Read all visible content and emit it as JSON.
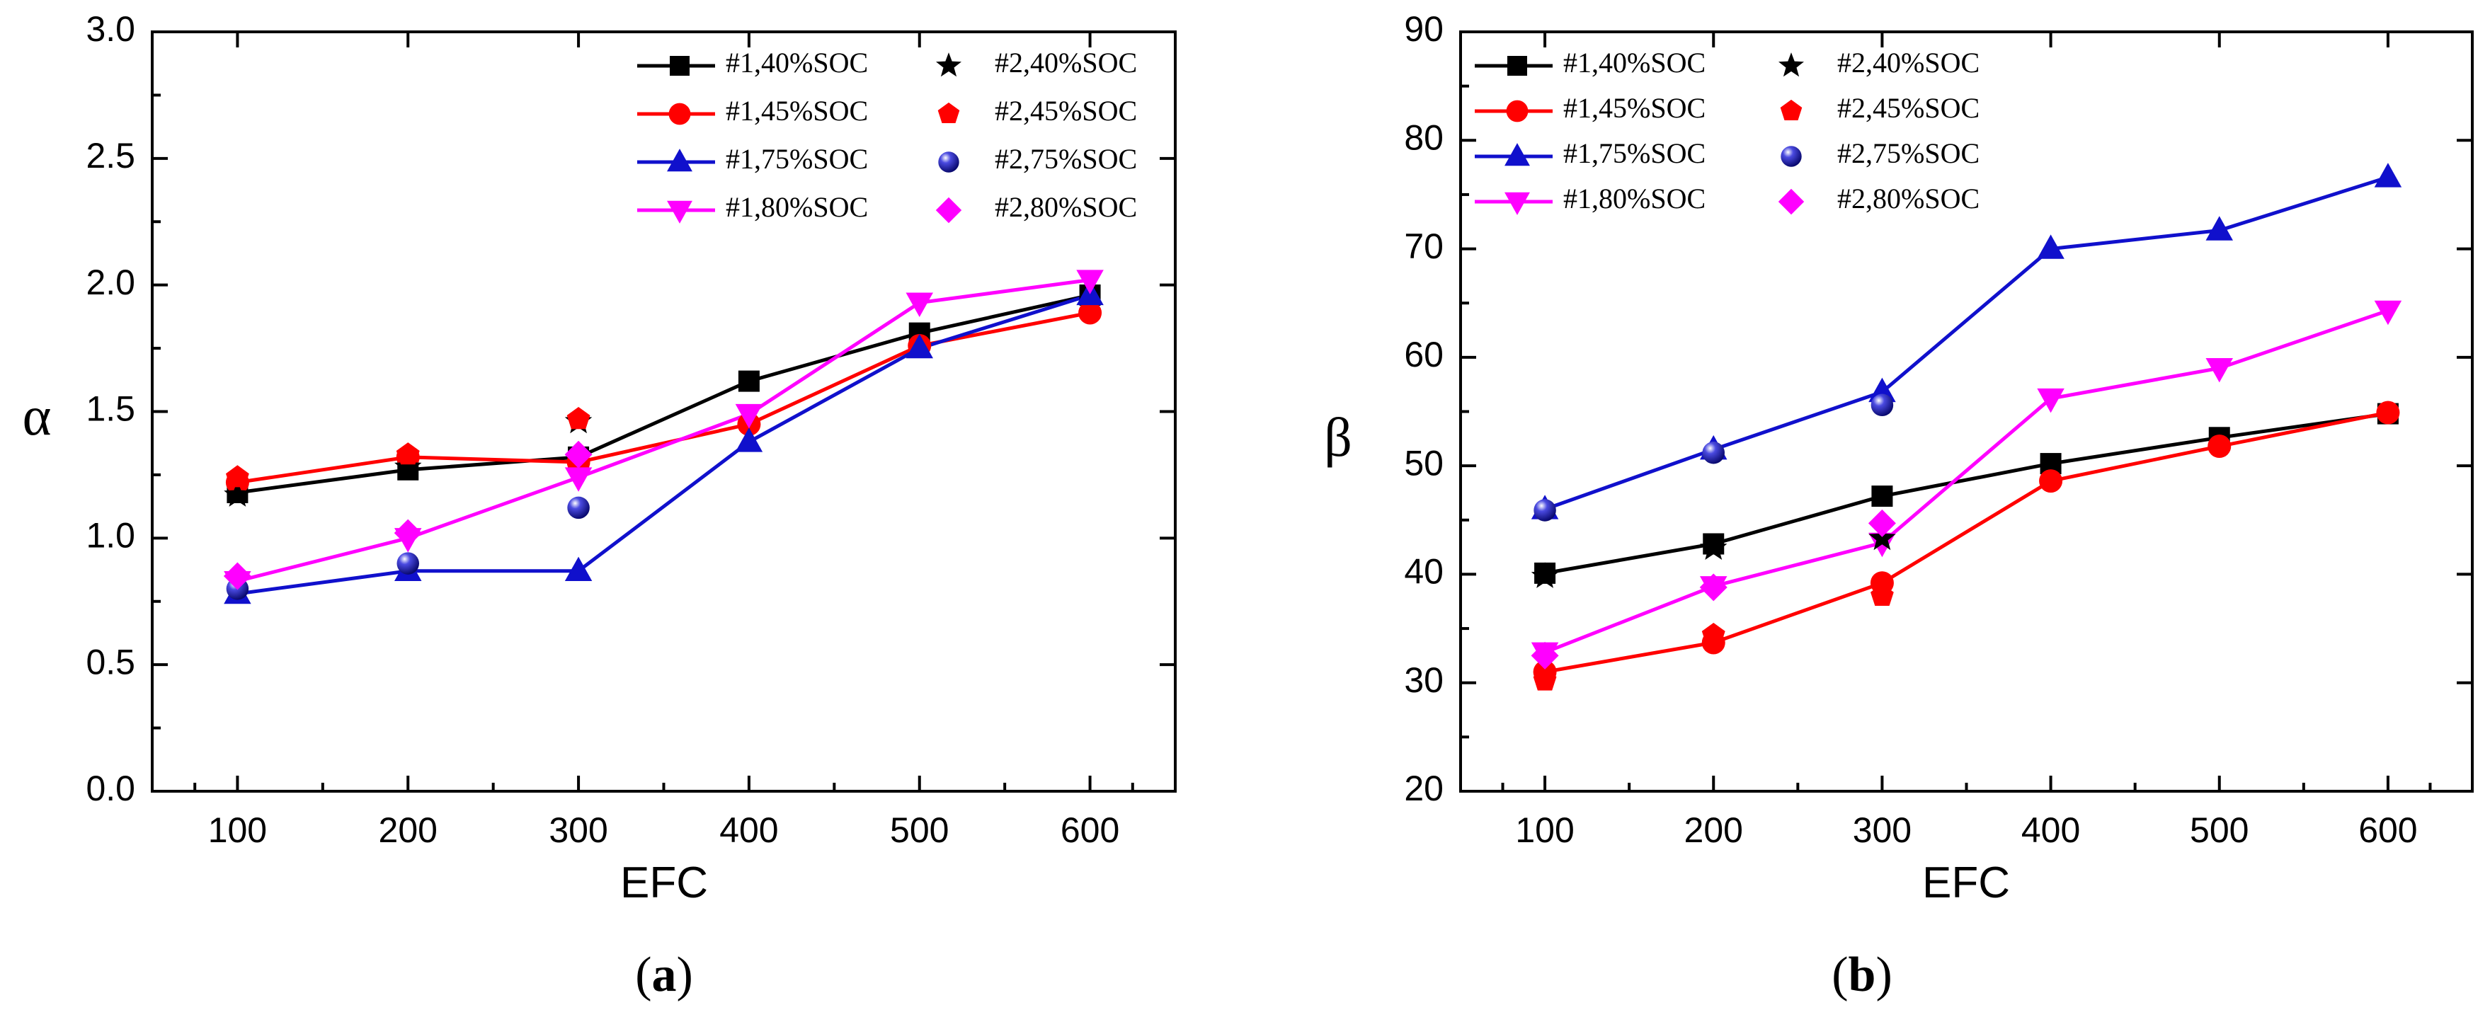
{
  "colors": {
    "black": "#000000",
    "red": "#ff0000",
    "blue": "#1010cc",
    "magenta": "#ff00ff"
  },
  "chart_data": [
    {
      "type": "line",
      "panel_label": "(a)",
      "panel_letter": "a",
      "ylabel": "α",
      "xlabel": "EFC",
      "xlim": [
        50,
        650
      ],
      "ylim": [
        0.0,
        3.0
      ],
      "xticks": [
        100,
        200,
        300,
        400,
        500,
        600
      ],
      "yticks": [
        0.0,
        0.5,
        1.0,
        1.5,
        2.0,
        2.5,
        3.0
      ],
      "ytick_labels": [
        "0.0",
        "0.5",
        "1.0",
        "1.5",
        "2.0",
        "2.5",
        "3.0"
      ],
      "series": [
        {
          "name": "#1,40%SOC",
          "color": "#000000",
          "marker": "square",
          "line": true,
          "x": [
            100,
            200,
            300,
            400,
            500,
            600
          ],
          "values": [
            1.18,
            1.27,
            1.32,
            1.62,
            1.81,
            1.96
          ]
        },
        {
          "name": "#1,45%SOC",
          "color": "#ff0000",
          "marker": "circle",
          "line": true,
          "x": [
            100,
            200,
            300,
            400,
            500,
            600
          ],
          "values": [
            1.22,
            1.32,
            1.3,
            1.45,
            1.76,
            1.89
          ]
        },
        {
          "name": "#1,75%SOC",
          "color": "#1010cc",
          "marker": "triangle-up",
          "line": true,
          "x": [
            100,
            200,
            300,
            400,
            500,
            600
          ],
          "values": [
            0.78,
            0.87,
            0.87,
            1.38,
            1.75,
            1.96
          ]
        },
        {
          "name": "#1,80%SOC",
          "color": "#ff00ff",
          "marker": "triangle-down",
          "line": true,
          "x": [
            100,
            200,
            300,
            400,
            500,
            600
          ],
          "values": [
            0.83,
            1.0,
            1.24,
            1.49,
            1.93,
            2.02
          ]
        },
        {
          "name": "#2,40%SOC",
          "color": "#000000",
          "marker": "star",
          "line": false,
          "x": [
            100,
            200,
            300
          ],
          "values": [
            1.17,
            1.28,
            1.46
          ]
        },
        {
          "name": "#2,45%SOC",
          "color": "#ff0000",
          "marker": "pentagon",
          "line": false,
          "x": [
            100,
            200,
            300
          ],
          "values": [
            1.24,
            1.33,
            1.47
          ]
        },
        {
          "name": "#2,75%SOC",
          "color": "#1010cc",
          "marker": "ball",
          "line": false,
          "x": [
            100,
            200,
            300
          ],
          "values": [
            0.8,
            0.9,
            1.12
          ]
        },
        {
          "name": "#2,80%SOC",
          "color": "#ff00ff",
          "marker": "diamond",
          "line": false,
          "x": [
            100,
            200,
            300
          ],
          "values": [
            0.85,
            1.02,
            1.33
          ]
        }
      ],
      "legend": {
        "placement": "top-right",
        "columns": 2
      }
    },
    {
      "type": "line",
      "panel_label": "(b)",
      "panel_letter": "b",
      "ylabel": "β",
      "xlabel": "EFC",
      "xlim": [
        50,
        650
      ],
      "ylim": [
        20,
        90
      ],
      "xticks": [
        100,
        200,
        300,
        400,
        500,
        600
      ],
      "yticks": [
        20,
        30,
        40,
        50,
        60,
        70,
        80,
        90
      ],
      "ytick_labels": [
        "20",
        "30",
        "40",
        "50",
        "60",
        "70",
        "80",
        "90"
      ],
      "series": [
        {
          "name": "#1,40%SOC",
          "color": "#000000",
          "marker": "square",
          "line": true,
          "x": [
            100,
            200,
            300,
            400,
            500,
            600
          ],
          "values": [
            40.1,
            42.8,
            47.2,
            50.2,
            52.6,
            54.8
          ]
        },
        {
          "name": "#1,45%SOC",
          "color": "#ff0000",
          "marker": "circle",
          "line": true,
          "x": [
            100,
            200,
            300,
            400,
            500,
            600
          ],
          "values": [
            31.0,
            33.7,
            39.2,
            48.6,
            51.8,
            54.9
          ]
        },
        {
          "name": "#1,75%SOC",
          "color": "#1010cc",
          "marker": "triangle-up",
          "line": true,
          "x": [
            100,
            200,
            300,
            400,
            500,
            600
          ],
          "values": [
            46.0,
            51.5,
            56.8,
            70.0,
            71.7,
            76.6
          ]
        },
        {
          "name": "#1,80%SOC",
          "color": "#ff00ff",
          "marker": "triangle-down",
          "line": true,
          "x": [
            100,
            200,
            300,
            400,
            500,
            600
          ],
          "values": [
            32.8,
            38.9,
            42.9,
            56.2,
            59.0,
            64.3
          ]
        },
        {
          "name": "#2,40%SOC",
          "color": "#000000",
          "marker": "star",
          "line": false,
          "x": [
            100,
            200,
            300
          ],
          "values": [
            39.8,
            42.4,
            43.3
          ]
        },
        {
          "name": "#2,45%SOC",
          "color": "#ff0000",
          "marker": "pentagon",
          "line": false,
          "x": [
            100,
            200,
            300
          ],
          "values": [
            30.2,
            34.4,
            38.0
          ]
        },
        {
          "name": "#2,75%SOC",
          "color": "#1010cc",
          "marker": "ball",
          "line": false,
          "x": [
            100,
            200,
            300
          ],
          "values": [
            45.9,
            51.2,
            55.6
          ]
        },
        {
          "name": "#2,80%SOC",
          "color": "#ff00ff",
          "marker": "diamond",
          "line": false,
          "x": [
            100,
            200,
            300
          ],
          "values": [
            32.5,
            38.8,
            44.7
          ]
        }
      ],
      "legend": {
        "placement": "top-left",
        "columns": 2
      }
    }
  ]
}
